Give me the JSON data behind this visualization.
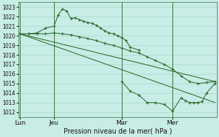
{
  "xlabel": "Pression niveau de la mer( hPa )",
  "ylim": [
    1011.5,
    1023.5
  ],
  "yticks": [
    1012,
    1013,
    1014,
    1015,
    1016,
    1017,
    1018,
    1019,
    1020,
    1021,
    1022,
    1023
  ],
  "bg_color": "#c8ece6",
  "grid_color": "#a8d8cc",
  "line_color": "#2d6e2d",
  "x_tick_positions": [
    0,
    4,
    12,
    18
  ],
  "x_tick_labels": [
    "Lun",
    "Jeu",
    "Mar",
    "Mer"
  ],
  "x_vlines": [
    0,
    4,
    12,
    18
  ],
  "xlim": [
    -0.2,
    23.2
  ],
  "series1_x": [
    0,
    1,
    2,
    3,
    4,
    4.5,
    5,
    5.5,
    6,
    6.5,
    7,
    7.5,
    8,
    8.5,
    9,
    9.5,
    10,
    10.5,
    11,
    11.5,
    12,
    12.5,
    13,
    14
  ],
  "series1_y": [
    1020.2,
    1020.2,
    1020.3,
    1020.8,
    1021.0,
    1022.2,
    1022.8,
    1022.6,
    1021.8,
    1021.9,
    1021.7,
    1021.5,
    1021.4,
    1021.3,
    1021.1,
    1020.8,
    1020.5,
    1020.3,
    1020.2,
    1020.0,
    1019.8,
    1019.5,
    1018.8,
    1018.5
  ],
  "series2_x": [
    0,
    1,
    2,
    3,
    4,
    5,
    6,
    7,
    8,
    9,
    10,
    11,
    12,
    13,
    14,
    15,
    16,
    17,
    18,
    19,
    20,
    21,
    22,
    23
  ],
  "series2_y": [
    1020.2,
    1020.2,
    1020.2,
    1020.2,
    1020.3,
    1020.2,
    1020.1,
    1019.9,
    1019.7,
    1019.5,
    1019.2,
    1019.0,
    1018.7,
    1018.4,
    1018.2,
    1017.8,
    1017.4,
    1017.0,
    1016.5,
    1015.8,
    1015.2,
    1015.0,
    1015.1,
    1015.2
  ],
  "series3_x": [
    0,
    23
  ],
  "series3_y": [
    1020.2,
    1013.0
  ],
  "series4_x": [
    0,
    23
  ],
  "series4_y": [
    1020.2,
    1015.2
  ],
  "series5_x": [
    12,
    13,
    14,
    15,
    16,
    17,
    18,
    19,
    19.5,
    20,
    20.5,
    21,
    21.5,
    22,
    23
  ],
  "series5_y": [
    1015.2,
    1014.2,
    1013.8,
    1013.0,
    1013.0,
    1012.8,
    1012.1,
    1013.5,
    1013.2,
    1013.0,
    1013.0,
    1013.0,
    1013.1,
    1014.0,
    1015.0
  ]
}
